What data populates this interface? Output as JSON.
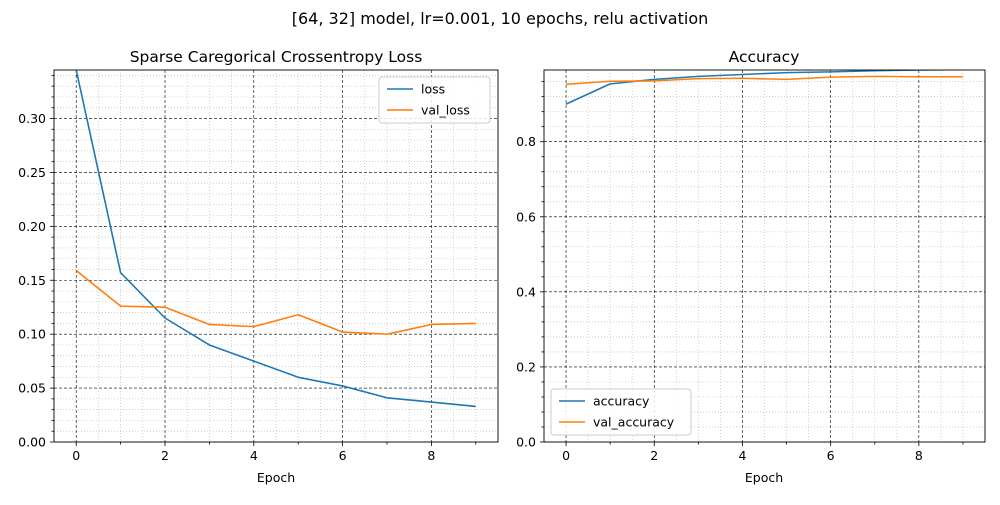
{
  "figure": {
    "suptitle": "[64, 32] model, lr=0.001, 10 epochs, relu activation"
  },
  "chart_data": [
    {
      "type": "line",
      "title": "Sparse Caregorical Crossentropy Loss",
      "xlabel": "Epoch",
      "ylabel": "",
      "x": [
        0,
        1,
        2,
        3,
        4,
        5,
        6,
        7,
        8,
        9
      ],
      "xlim": [
        -0.5,
        9.5
      ],
      "ylim": [
        0,
        0.345
      ],
      "xticks": [
        "0",
        "2",
        "4",
        "6",
        "8"
      ],
      "yticks": [
        "0.00",
        "0.05",
        "0.10",
        "0.15",
        "0.20",
        "0.25",
        "0.30"
      ],
      "grid": "major dashed, minor dotted",
      "legend_loc": "upper right",
      "series": [
        {
          "name": "loss",
          "color": "#1f77b4",
          "values": [
            0.345,
            0.157,
            0.115,
            0.09,
            0.075,
            0.06,
            0.052,
            0.041,
            0.037,
            0.033
          ]
        },
        {
          "name": "val_loss",
          "color": "#ff7f0e",
          "values": [
            0.159,
            0.126,
            0.125,
            0.109,
            0.107,
            0.118,
            0.102,
            0.1,
            0.109,
            0.11
          ]
        }
      ]
    },
    {
      "type": "line",
      "title": "Accuracy",
      "xlabel": "Epoch",
      "ylabel": "",
      "x": [
        0,
        1,
        2,
        3,
        4,
        5,
        6,
        7,
        8,
        9
      ],
      "xlim": [
        -0.5,
        9.5
      ],
      "ylim": [
        0,
        0.991
      ],
      "xticks": [
        "0",
        "2",
        "4",
        "6",
        "8"
      ],
      "yticks": [
        "0.0",
        "0.2",
        "0.4",
        "0.6",
        "0.8"
      ],
      "grid": "major dashed, minor dotted",
      "legend_loc": "lower left",
      "series": [
        {
          "name": "accuracy",
          "color": "#1f77b4",
          "values": [
            0.9,
            0.954,
            0.966,
            0.974,
            0.979,
            0.984,
            0.986,
            0.989,
            0.991,
            0.992
          ]
        },
        {
          "name": "val_accuracy",
          "color": "#ff7f0e",
          "values": [
            0.953,
            0.961,
            0.962,
            0.968,
            0.969,
            0.966,
            0.972,
            0.974,
            0.973,
            0.973
          ]
        }
      ]
    }
  ]
}
